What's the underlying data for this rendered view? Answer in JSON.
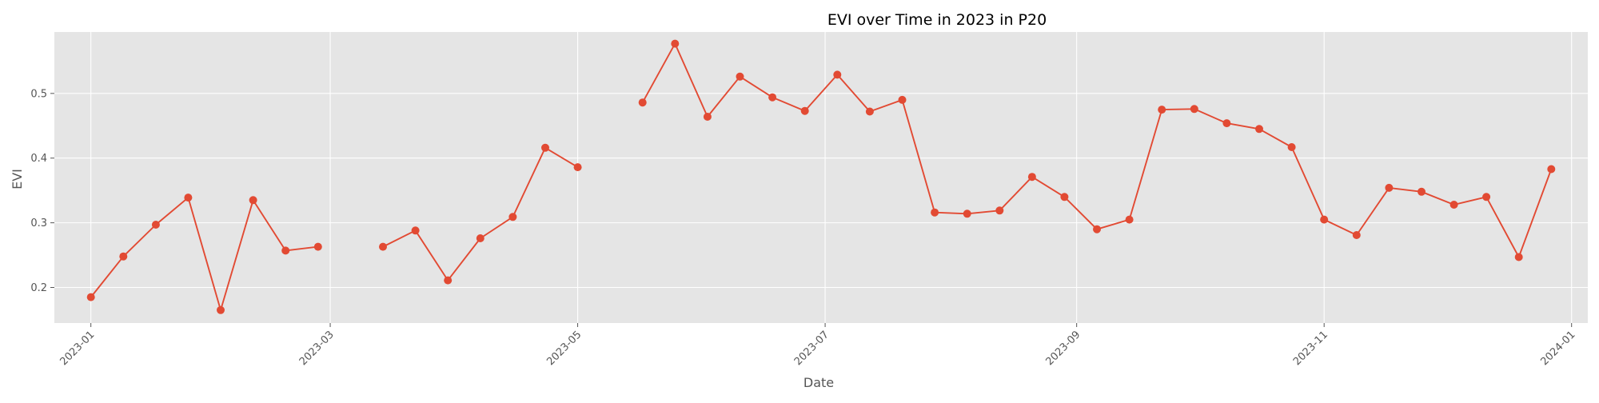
{
  "chart_data": {
    "type": "line",
    "title": "EVI over Time in 2023 in P20",
    "xlabel": "Date",
    "ylabel": "EVI",
    "grid": true,
    "legend": "none",
    "x_axis_kind": "date",
    "xlim": [
      "2022-12-23",
      "2024-01-05"
    ],
    "ylim": [
      0.145,
      0.595
    ],
    "x_ticks": [
      "2023-01",
      "2023-03",
      "2023-05",
      "2023-07",
      "2023-09",
      "2023-11",
      "2024-01"
    ],
    "y_ticks": [
      "0.2",
      "0.3",
      "0.4",
      "0.5"
    ],
    "colors": {
      "series": "#E24A33",
      "plot_bg": "#E5E5E5",
      "grid": "#FFFFFF",
      "text": "#555555",
      "title": "#000000"
    },
    "series": [
      {
        "points": [
          {
            "x": "2023-01-01",
            "y": 0.185
          },
          {
            "x": "2023-01-09",
            "y": 0.248
          },
          {
            "x": "2023-01-17",
            "y": 0.297
          },
          {
            "x": "2023-01-25",
            "y": 0.339
          },
          {
            "x": "2023-02-02",
            "y": 0.165
          },
          {
            "x": "2023-02-10",
            "y": 0.335
          },
          {
            "x": "2023-02-18",
            "y": 0.257
          },
          {
            "x": "2023-02-26",
            "y": 0.263
          },
          {
            "x": "2023-03-06",
            "y": null
          },
          {
            "x": "2023-03-14",
            "y": 0.263
          },
          {
            "x": "2023-03-22",
            "y": 0.288
          },
          {
            "x": "2023-03-30",
            "y": 0.211
          },
          {
            "x": "2023-04-07",
            "y": 0.276
          },
          {
            "x": "2023-04-15",
            "y": 0.309
          },
          {
            "x": "2023-04-23",
            "y": 0.416
          },
          {
            "x": "2023-05-01",
            "y": 0.386
          },
          {
            "x": "2023-05-09",
            "y": null
          },
          {
            "x": "2023-05-17",
            "y": 0.486
          },
          {
            "x": "2023-05-25",
            "y": 0.577
          },
          {
            "x": "2023-06-02",
            "y": 0.464
          },
          {
            "x": "2023-06-10",
            "y": 0.526
          },
          {
            "x": "2023-06-18",
            "y": 0.494
          },
          {
            "x": "2023-06-26",
            "y": 0.473
          },
          {
            "x": "2023-07-04",
            "y": 0.529
          },
          {
            "x": "2023-07-12",
            "y": 0.472
          },
          {
            "x": "2023-07-20",
            "y": 0.49
          },
          {
            "x": "2023-07-28",
            "y": 0.316
          },
          {
            "x": "2023-08-05",
            "y": 0.314
          },
          {
            "x": "2023-08-13",
            "y": 0.319
          },
          {
            "x": "2023-08-21",
            "y": 0.371
          },
          {
            "x": "2023-08-29",
            "y": 0.34
          },
          {
            "x": "2023-09-06",
            "y": 0.29
          },
          {
            "x": "2023-09-14",
            "y": 0.305
          },
          {
            "x": "2023-09-22",
            "y": 0.475
          },
          {
            "x": "2023-09-30",
            "y": 0.476
          },
          {
            "x": "2023-10-08",
            "y": 0.454
          },
          {
            "x": "2023-10-16",
            "y": 0.445
          },
          {
            "x": "2023-10-24",
            "y": 0.417
          },
          {
            "x": "2023-11-01",
            "y": 0.305
          },
          {
            "x": "2023-11-09",
            "y": 0.281
          },
          {
            "x": "2023-11-17",
            "y": 0.354
          },
          {
            "x": "2023-11-25",
            "y": 0.348
          },
          {
            "x": "2023-12-03",
            "y": 0.328
          },
          {
            "x": "2023-12-11",
            "y": 0.34
          },
          {
            "x": "2023-12-19",
            "y": 0.247
          },
          {
            "x": "2023-12-27",
            "y": 0.383
          }
        ]
      }
    ]
  }
}
